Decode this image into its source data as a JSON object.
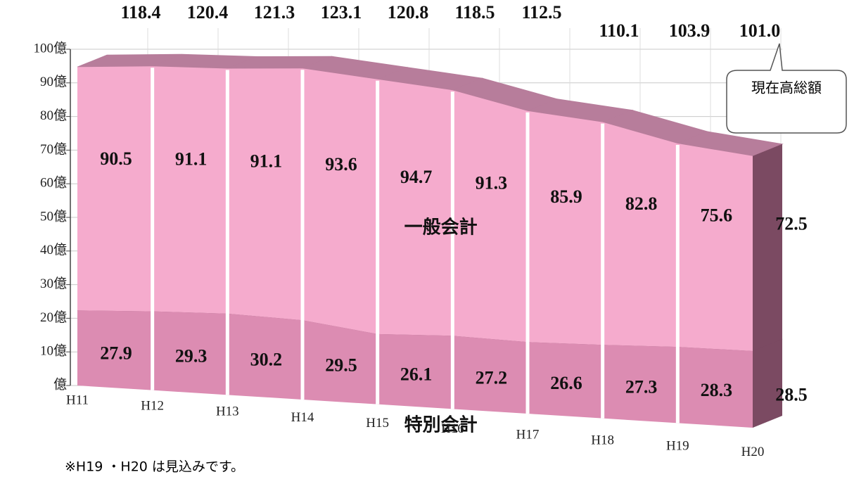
{
  "chart_data": {
    "type": "stacked-area-3d",
    "categories": [
      "H11",
      "H12",
      "H13",
      "H14",
      "H15",
      "H16",
      "H17",
      "H18",
      "H19",
      "H20"
    ],
    "series": [
      {
        "name": "特別会計",
        "color": "#dc8cb2",
        "top_color": "#7b4561",
        "values": [
          27.9,
          29.3,
          30.2,
          29.5,
          26.1,
          27.2,
          26.6,
          27.3,
          28.3,
          28.5
        ]
      },
      {
        "name": "一般会計",
        "color": "#f5abcd",
        "top_color": "#b77d9b",
        "values": [
          90.5,
          91.1,
          91.1,
          93.6,
          94.7,
          91.3,
          85.9,
          82.8,
          75.6,
          72.5
        ]
      }
    ],
    "totals": {
      "values": [
        118.4,
        120.4,
        121.3,
        123.1,
        120.8,
        118.5,
        112.5,
        110.1,
        103.9,
        101.0
      ],
      "value_labels": [
        "118.4",
        "120.4",
        "121.3",
        "123.1",
        "120.8",
        "118.5",
        "112.5",
        "110.1",
        "103.9",
        "101.0"
      ]
    },
    "callout": "現在高総額",
    "note": "※H19 ・H20 は見込みです。",
    "ylim": [
      0,
      100
    ],
    "yticks": [
      {
        "value": 0,
        "label": "億"
      },
      {
        "value": 10,
        "label": "10億"
      },
      {
        "value": 20,
        "label": "20億"
      },
      {
        "value": 30,
        "label": "30億"
      },
      {
        "value": 40,
        "label": "40億"
      },
      {
        "value": 50,
        "label": "50億"
      },
      {
        "value": 60,
        "label": "60億"
      },
      {
        "value": 70,
        "label": "70億"
      },
      {
        "value": 80,
        "label": "80億"
      },
      {
        "value": 90,
        "label": "90億"
      },
      {
        "value": 100,
        "label": "100億"
      }
    ],
    "grid": true
  }
}
